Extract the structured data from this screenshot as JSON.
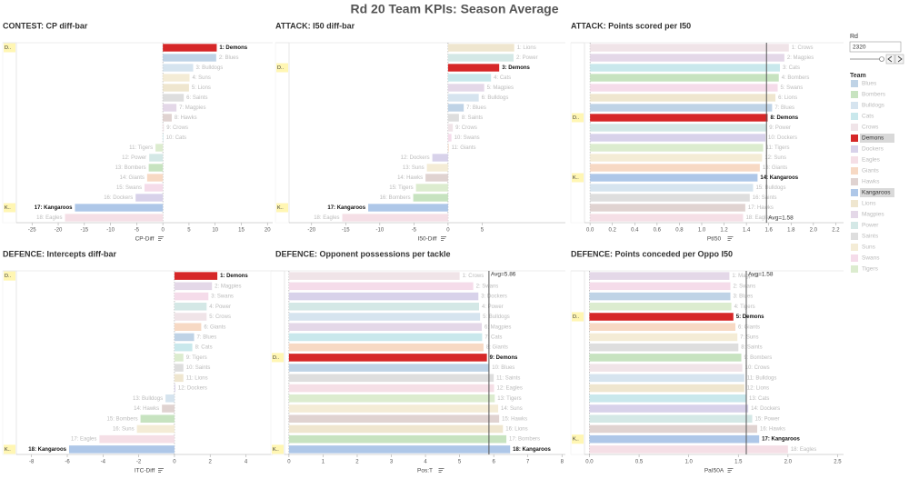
{
  "title": "Rd 20 Team KPIs: Season Average",
  "filters": {
    "label": "Rd",
    "value": "2320"
  },
  "legend": {
    "title": "Team",
    "items": [
      {
        "name": "Blues",
        "color": "#bfd3e6"
      },
      {
        "name": "Bombers",
        "color": "#c7e3c0"
      },
      {
        "name": "Bulldogs",
        "color": "#d6e4ef"
      },
      {
        "name": "Cats",
        "color": "#c9e8ec"
      },
      {
        "name": "Crows",
        "color": "#f0e4e8"
      },
      {
        "name": "Demons",
        "color": "#d62728",
        "tag": "D.."
      },
      {
        "name": "Dockers",
        "color": "#d8d2ea"
      },
      {
        "name": "Eagles",
        "color": "#f5dfe6"
      },
      {
        "name": "Giants",
        "color": "#f7d9c4"
      },
      {
        "name": "Hawks",
        "color": "#e0d3d1"
      },
      {
        "name": "Kangaroos",
        "color": "#aec7e8",
        "tag": "K.."
      },
      {
        "name": "Lions",
        "color": "#efe6cf"
      },
      {
        "name": "Magpies",
        "color": "#e4d8e8"
      },
      {
        "name": "Power",
        "color": "#d4e8e6"
      },
      {
        "name": "Saints",
        "color": "#dedede"
      },
      {
        "name": "Suns",
        "color": "#f4ecd6"
      },
      {
        "name": "Swans",
        "color": "#f5dcea"
      },
      {
        "name": "Tigers",
        "color": "#dceccf"
      }
    ]
  },
  "chart_data": [
    {
      "type": "bar",
      "orientation": "horizontal",
      "title": "CONTEST: CP diff-bar",
      "x_label": "CP-Diff",
      "categories": [
        "1: Demons",
        "2: Blues",
        "3: Bulldogs",
        "4: Suns",
        "5: Lions",
        "6: Saints",
        "7: Magpies",
        "8: Hawks",
        "9: Crows",
        "10: Cats",
        "11: Tigers",
        "12: Power",
        "13: Bombers",
        "14: Giants",
        "15: Swans",
        "16: Dockers",
        "17: Kangaroos",
        "18: Eagles"
      ],
      "values": [
        10.3,
        10.2,
        5.8,
        5.1,
        5.0,
        4.0,
        2.6,
        1.7,
        0.2,
        0.1,
        -1.4,
        -2.6,
        -2.7,
        -3.0,
        -3.5,
        -5.2,
        -16.8,
        -18.7
      ],
      "xlim": [
        -28,
        21
      ],
      "xticks": [
        -25,
        -20,
        -15,
        -10,
        -5,
        0,
        5,
        10,
        15,
        20
      ]
    },
    {
      "type": "bar",
      "orientation": "horizontal",
      "title": "ATTACK: I50 diff-bar",
      "x_label": "I50-Diff",
      "categories": [
        "1: Lions",
        "2: Power",
        "3: Demons",
        "4: Cats",
        "5: Magpies",
        "6: Bulldogs",
        "7: Blues",
        "8: Saints",
        "9: Crows",
        "10: Swans",
        "11: Giants",
        "12: Dockers",
        "13: Suns",
        "14: Hawks",
        "15: Tigers",
        "16: Bombers",
        "17: Kangaroos",
        "18: Eagles"
      ],
      "values": [
        9.7,
        9.6,
        7.5,
        6.3,
        5.3,
        4.5,
        2.3,
        1.6,
        0.7,
        0.5,
        0.1,
        -2.3,
        -3.1,
        -3.3,
        -4.7,
        -5.1,
        -11.7,
        -15.5
      ],
      "xlim": [
        -23.3,
        17.2
      ],
      "xticks": [
        -20,
        -15,
        -10,
        -5,
        0,
        5
      ]
    },
    {
      "type": "bar",
      "orientation": "horizontal",
      "title": "ATTACK: Points scored per I50",
      "x_label": "PtI50",
      "categories": [
        "1: Crows",
        "2: Magpies",
        "3: Cats",
        "4: Bombers",
        "5: Swans",
        "6: Lions",
        "7: Blues",
        "8: Demons",
        "9: Power",
        "10: Dockers",
        "11: Tigers",
        "12: Suns",
        "13: Giants",
        "14: Kangaroos",
        "15: Bulldogs",
        "16: Saints",
        "17: Hawks",
        "18: Eagles"
      ],
      "values": [
        1.78,
        1.74,
        1.7,
        1.69,
        1.68,
        1.66,
        1.63,
        1.59,
        1.58,
        1.57,
        1.55,
        1.54,
        1.52,
        1.5,
        1.46,
        1.43,
        1.39,
        1.37
      ],
      "xlim": [
        -0.05,
        2.27
      ],
      "xticks": [
        {
          "value": 0,
          "label": "0.0"
        },
        0.2,
        0.4,
        0.6,
        0.8,
        {
          "value": 1,
          "label": "1.0"
        },
        1.2,
        1.4,
        1.6,
        1.8,
        {
          "value": 2,
          "label": "2.0"
        },
        2.2
      ],
      "reference": {
        "value": 1.58,
        "label": "Avg=1.58",
        "position": "bottom"
      }
    },
    {
      "type": "bar",
      "orientation": "horizontal",
      "title": "DEFENCE: Intercepts diff-bar",
      "x_label": "ITC-Diff",
      "categories": [
        "1: Demons",
        "2: Magpies",
        "3: Swans",
        "4: Power",
        "5: Crows",
        "6: Giants",
        "7: Blues",
        "8: Cats",
        "9: Tigers",
        "10: Saints",
        "11: Lions",
        "12: Dockers",
        "13: Bulldogs",
        "14: Hawks",
        "15: Bombers",
        "16: Suns",
        "17: Eagles",
        "18: Kangaroos"
      ],
      "values": [
        2.4,
        2.1,
        1.9,
        1.8,
        1.8,
        1.5,
        1.1,
        1.0,
        0.5,
        0.5,
        0.5,
        0.05,
        -0.5,
        -0.7,
        -1.9,
        -2.1,
        -4.2,
        -5.9
      ],
      "xlim": [
        -8.85,
        5.5
      ],
      "xticks": [
        -8,
        -6,
        -4,
        -2,
        0,
        2,
        4
      ]
    },
    {
      "type": "bar",
      "orientation": "horizontal",
      "title": "DEFENCE: Opponent possessions per tackle",
      "x_label": "Pos:T",
      "categories": [
        "1: Crows",
        "2: Swans",
        "3: Dockers",
        "4: Power",
        "5: Bulldogs",
        "6: Magpies",
        "7: Cats",
        "8: Giants",
        "9: Demons",
        "10: Blues",
        "11: Saints",
        "12: Eagles",
        "13: Tigers",
        "14: Suns",
        "15: Hawks",
        "16: Lions",
        "17: Bombers",
        "18: Kangaroos"
      ],
      "values": [
        5.0,
        5.4,
        5.55,
        5.57,
        5.6,
        5.65,
        5.66,
        5.7,
        5.8,
        5.87,
        6.0,
        6.01,
        6.03,
        6.13,
        6.16,
        6.27,
        6.37,
        6.48
      ],
      "xlim": [
        -0.13,
        8.1
      ],
      "xticks": [
        0,
        1,
        2,
        3,
        4,
        5,
        6,
        7,
        8
      ],
      "reference": {
        "value": 5.86,
        "label": "Avg=5.86",
        "position": "top"
      }
    },
    {
      "type": "bar",
      "orientation": "horizontal",
      "title": "DEFENCE: Points conceded per Oppo I50",
      "x_label": "PaI50A",
      "categories": [
        "1: Magpies",
        "2: Swans",
        "3: Blues",
        "4: Tigers",
        "5: Demons",
        "6: Giants",
        "7: Suns",
        "8: Saints",
        "9: Bombers",
        "10: Crows",
        "11: Bulldogs",
        "12: Lions",
        "13: Cats",
        "14: Dockers",
        "15: Power",
        "16: Hawks",
        "17: Kangaroos",
        "18: Eagles"
      ],
      "values": [
        1.41,
        1.42,
        1.42,
        1.43,
        1.45,
        1.47,
        1.49,
        1.5,
        1.53,
        1.54,
        1.56,
        1.56,
        1.58,
        1.6,
        1.64,
        1.69,
        1.71,
        2.0
      ],
      "xlim": [
        -0.05,
        2.56
      ],
      "xticks": [
        {
          "value": 0,
          "label": "0.0"
        },
        0.5,
        {
          "value": 1,
          "label": "1.0"
        },
        1.5,
        {
          "value": 2,
          "label": "2.0"
        },
        2.5
      ],
      "reference": {
        "value": 1.58,
        "label": "Avg=1.58",
        "position": "top"
      }
    }
  ]
}
